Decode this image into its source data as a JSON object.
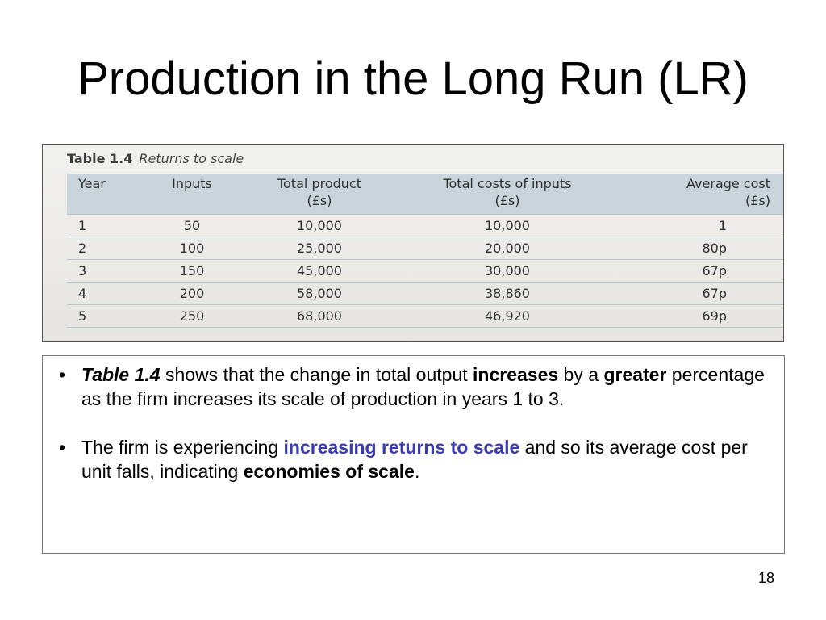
{
  "slide": {
    "title": "Production in the Long Run (LR)",
    "page_number": "18"
  },
  "table": {
    "number": "Table 1.4",
    "caption": "Returns to scale",
    "headers": [
      "Year",
      "Inputs",
      "Total product\n(£s)",
      "Total costs of inputs\n(£s)",
      "Average cost\n(£s)"
    ],
    "rows": [
      [
        "1",
        "50",
        "10,000",
        "10,000",
        "1"
      ],
      [
        "2",
        "100",
        "25,000",
        "20,000",
        "80p"
      ],
      [
        "3",
        "150",
        "45,000",
        "30,000",
        "67p"
      ],
      [
        "4",
        "200",
        "58,000",
        "38,860",
        "67p"
      ],
      [
        "5",
        "250",
        "68,000",
        "46,920",
        "69p"
      ]
    ]
  },
  "bullets": [
    {
      "parts": {
        "p1": "Table 1.4",
        "p2": " shows that the change in total output ",
        "p3": "increases",
        "p4": " by a ",
        "p5": "greater",
        "p6": " percentage as the firm increases its scale of production in years 1 to 3."
      }
    },
    {
      "parts": {
        "p1": "The firm is experiencing ",
        "p2": "increasing returns to scale",
        "p3": " and so its average cost per unit falls, indicating ",
        "p4": "economies of scale",
        "p5": "."
      }
    }
  ],
  "colors": {
    "accent_text": "#3b3bb0",
    "table_header_band": "#c9d5da"
  }
}
